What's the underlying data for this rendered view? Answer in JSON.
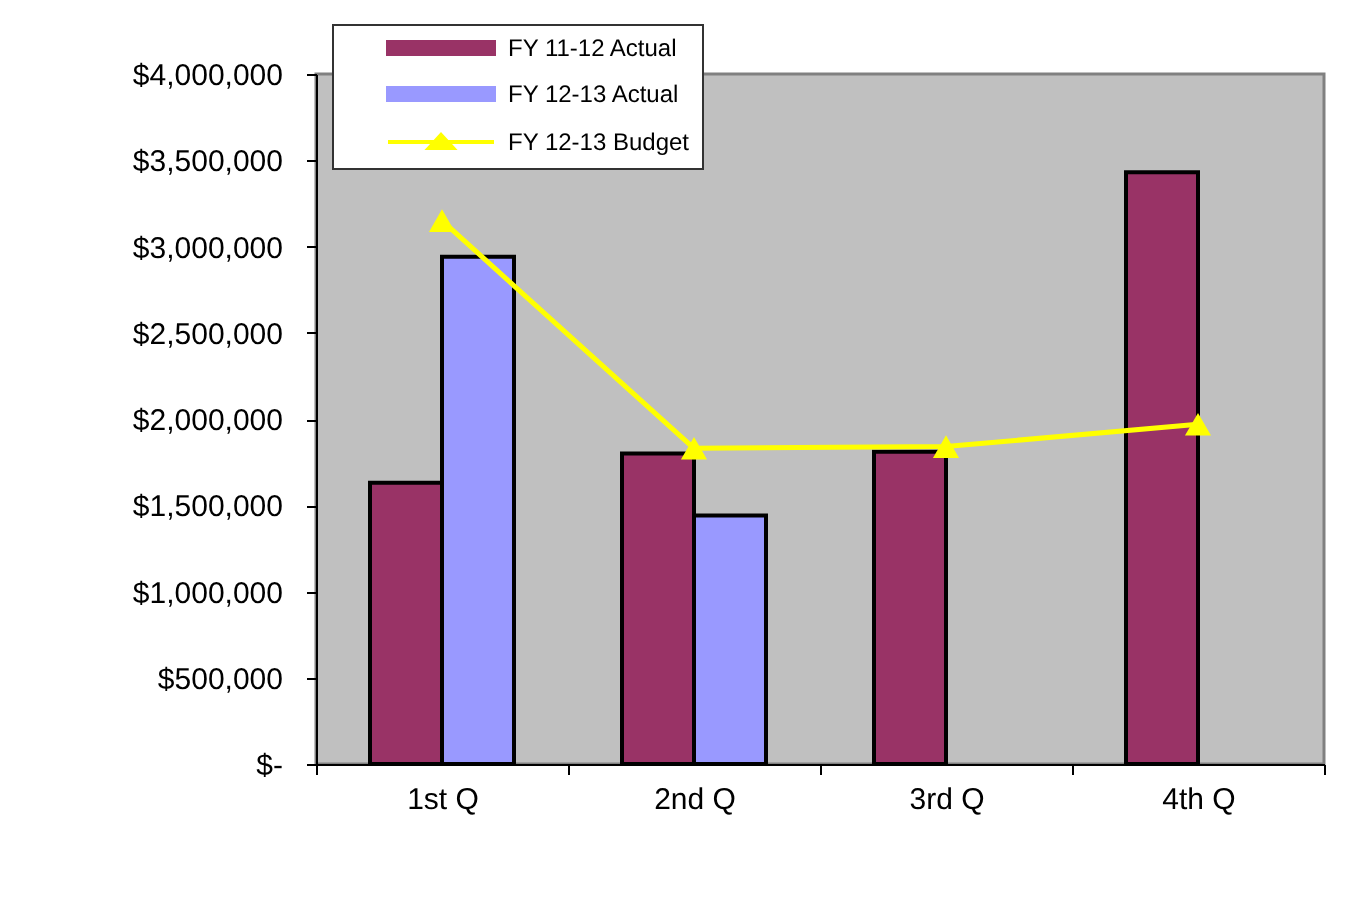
{
  "chart_data": {
    "type": "bar",
    "categories": [
      "1st Q",
      "2nd Q",
      "3rd Q",
      "4th Q"
    ],
    "series": [
      {
        "name": "FY 11-12 Actual",
        "color": "#993366",
        "values": [
          1630000,
          1800000,
          1810000,
          3430000
        ]
      },
      {
        "name": "FY 12-13 Actual",
        "color": "#9999ff",
        "values": [
          2940000,
          1440000,
          null,
          null
        ]
      },
      {
        "name": "FY 12-13 Budget",
        "type": "line",
        "color": "#ffff00",
        "values": [
          3150000,
          1830000,
          1840000,
          1970000
        ]
      }
    ],
    "ylim": [
      0,
      4000000
    ],
    "yticks": [
      {
        "value": 0,
        "label": "$-"
      },
      {
        "value": 500000,
        "label": "$500,000"
      },
      {
        "value": 1000000,
        "label": "$1,000,000"
      },
      {
        "value": 1500000,
        "label": "$1,500,000"
      },
      {
        "value": 2000000,
        "label": "$2,000,000"
      },
      {
        "value": 2500000,
        "label": "$2,500,000"
      },
      {
        "value": 3000000,
        "label": "$3,000,000"
      },
      {
        "value": 3500000,
        "label": "$3,500,000"
      },
      {
        "value": 4000000,
        "label": "$4,000,000"
      }
    ],
    "grid": false,
    "legend": "top left",
    "marker": "triangle"
  }
}
